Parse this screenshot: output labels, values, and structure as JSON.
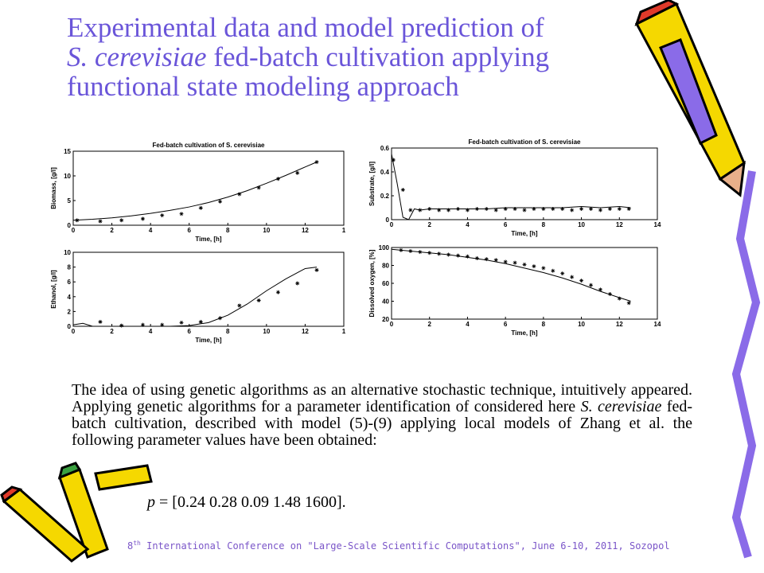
{
  "title": [
    {
      "text": "Experimental data and model prediction of"
    },
    {
      "text": "S. cerevisiae",
      "italic": true
    },
    {
      "text": " fed-batch cultivation applying"
    },
    {
      "text": "functional state modeling approach"
    }
  ],
  "chart_data": [
    {
      "type": "line",
      "title": "Fed-batch cultivation of S. cerevisiae",
      "xlabel": "Time, [h]",
      "ylabel": "Biomass, [g/l]",
      "xlim": [
        0,
        14
      ],
      "ylim": [
        0,
        15
      ],
      "xticks": [
        0,
        2,
        4,
        6,
        8,
        10,
        12,
        {
          "value": 14,
          "label": "1"
        }
      ],
      "yticks": [
        0,
        5,
        10,
        15
      ],
      "series": [
        {
          "color": "#000000",
          "x": [
            0,
            1,
            2,
            3,
            4,
            5,
            6,
            7,
            8,
            9,
            10,
            11,
            12,
            12.6
          ],
          "values": [
            1.0,
            1.2,
            1.5,
            1.9,
            2.4,
            3.0,
            3.7,
            4.6,
            5.7,
            7.0,
            8.5,
            10.1,
            11.8,
            12.8
          ]
        },
        {
          "color": "#000000",
          "marker": "*",
          "x": [
            0.2,
            1.4,
            2.5,
            3.6,
            4.6,
            5.6,
            6.6,
            7.6,
            8.6,
            9.6,
            10.6,
            11.6,
            12.6
          ],
          "values": [
            1.0,
            0.8,
            1.0,
            1.3,
            2.0,
            2.3,
            3.5,
            4.8,
            6.3,
            7.6,
            9.4,
            10.6,
            12.8
          ]
        }
      ]
    },
    {
      "type": "line",
      "title": "Fed-batch cultivation of S. cerevisiae",
      "xlabel": "Time, [h]",
      "ylabel": "Substrate, [g/l]",
      "xlim": [
        0,
        14
      ],
      "ylim": [
        0,
        0.6
      ],
      "xticks": [
        0,
        2,
        4,
        6,
        8,
        10,
        12,
        14
      ],
      "yticks": [
        0,
        0.2,
        0.4,
        0.6
      ],
      "series": [
        {
          "color": "#000000",
          "x": [
            0,
            0.3,
            0.6,
            0.9,
            1.2,
            1.5,
            2,
            3,
            4,
            5,
            6,
            7,
            8,
            9,
            10,
            11,
            12,
            12.6
          ],
          "values": [
            0.55,
            0.3,
            0.02,
            0.0,
            0.09,
            0.08,
            0.09,
            0.09,
            0.09,
            0.09,
            0.1,
            0.1,
            0.1,
            0.1,
            0.11,
            0.1,
            0.11,
            0.1
          ]
        },
        {
          "color": "#000000",
          "marker": "*",
          "x": [
            0.1,
            0.6,
            1.0,
            1.5,
            2,
            2.5,
            3,
            3.5,
            4,
            4.5,
            5,
            5.5,
            6,
            6.5,
            7,
            7.5,
            8,
            8.5,
            9,
            9.5,
            10,
            10.5,
            11,
            11.5,
            12,
            12.5
          ],
          "values": [
            0.5,
            0.25,
            0.08,
            0.08,
            0.09,
            0.08,
            0.08,
            0.09,
            0.08,
            0.09,
            0.09,
            0.08,
            0.09,
            0.09,
            0.08,
            0.09,
            0.09,
            0.09,
            0.09,
            0.08,
            0.09,
            0.09,
            0.08,
            0.09,
            0.09,
            0.09
          ]
        }
      ]
    },
    {
      "type": "line",
      "title": null,
      "xlabel": "Time, [h]",
      "ylabel": "Ethanol, [g/l]",
      "xlim": [
        0,
        14
      ],
      "ylim": [
        0,
        10
      ],
      "xticks": [
        0,
        2,
        4,
        6,
        8,
        10,
        12,
        {
          "value": 14,
          "label": "1"
        }
      ],
      "yticks": [
        0,
        2,
        4,
        6,
        8,
        10
      ],
      "series": [
        {
          "color": "#000000",
          "x": [
            0,
            0.5,
            1,
            2,
            3,
            4,
            5,
            6,
            7,
            8,
            9,
            10,
            11,
            12,
            12.6
          ],
          "values": [
            0.2,
            0.4,
            0,
            0,
            0,
            0,
            0,
            0.1,
            0.5,
            1.5,
            3.0,
            4.8,
            6.4,
            7.8,
            8.0
          ]
        },
        {
          "color": "#000000",
          "marker": "*",
          "x": [
            1.4,
            2.5,
            3.6,
            4.6,
            5.6,
            6.6,
            7.6,
            8.6,
            9.6,
            10.6,
            11.6,
            12.6
          ],
          "values": [
            0.6,
            0.1,
            0.2,
            0.2,
            0.5,
            0.6,
            1.1,
            2.8,
            3.5,
            4.6,
            5.8,
            7.6
          ]
        }
      ]
    },
    {
      "type": "line",
      "title": null,
      "xlabel": "Time, [h]",
      "ylabel": "Dissolved oxygen, [%]",
      "xlim": [
        0,
        14
      ],
      "ylim": [
        20,
        100
      ],
      "xticks": [
        0,
        2,
        4,
        6,
        8,
        10,
        12,
        14
      ],
      "yticks": [
        20,
        40,
        60,
        80,
        100
      ],
      "series": [
        {
          "color": "#000000",
          "x": [
            0,
            1,
            2,
            3,
            4,
            5,
            6,
            7,
            8,
            9,
            10,
            11,
            12,
            12.6
          ],
          "values": [
            98,
            96,
            94,
            92,
            89,
            86,
            82,
            77,
            72,
            66,
            59,
            51,
            44,
            40
          ]
        },
        {
          "color": "#000000",
          "marker": "*",
          "x": [
            0.5,
            1,
            1.5,
            2,
            2.5,
            3,
            3.5,
            4,
            4.5,
            5,
            5.5,
            6,
            6.5,
            7,
            7.5,
            8,
            8.5,
            9,
            9.5,
            10,
            10.5,
            11,
            11.5,
            12,
            12.5
          ],
          "values": [
            97,
            96,
            95,
            94,
            93,
            92,
            91,
            90,
            88,
            87,
            86,
            84,
            83,
            81,
            79,
            77,
            74,
            71,
            67,
            63,
            58,
            53,
            48,
            43,
            38
          ]
        }
      ]
    }
  ],
  "paragraph": [
    {
      "text": "The idea of using genetic algorithms as an alternative stochastic technique, intuitively appeared. Applying genetic algorithms for a parameter identification of considered here "
    },
    {
      "text": "S. cerevisiae",
      "italic": true
    },
    {
      "text": " fed-batch cultivation, described with model (5)-(9) applying local models of Zhang et al. the following parameter values have been obtained:"
    }
  ],
  "result": [
    {
      "text": "p",
      "italic": true
    },
    {
      "text": " = [0.24 0.28 0.09 1.48 1600]."
    }
  ],
  "footer": {
    "pre": "8",
    "sup": "th",
    "post": " International Conference on \"Large-Scale Scientific Computations\", June 6-10, 2011, Sozopol"
  }
}
